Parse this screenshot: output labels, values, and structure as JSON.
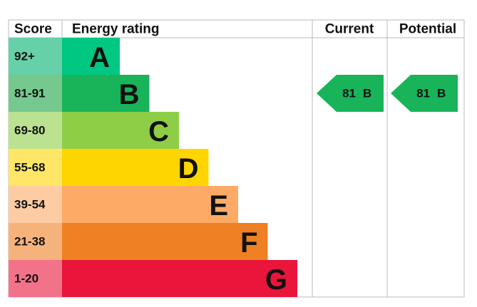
{
  "header": {
    "score": "Score",
    "energy_rating": "Energy rating",
    "current": "Current",
    "potential": "Potential"
  },
  "bands": [
    {
      "score": "92+",
      "letter": "A",
      "color": "#00c781",
      "score_color": "#66d1a8"
    },
    {
      "score": "81-91",
      "letter": "B",
      "color": "#19b459",
      "score_color": "#75c98f"
    },
    {
      "score": "69-80",
      "letter": "C",
      "color": "#8dce46",
      "score_color": "#bbe291"
    },
    {
      "score": "55-68",
      "letter": "D",
      "color": "#ffd500",
      "score_color": "#ffe666"
    },
    {
      "score": "39-54",
      "letter": "E",
      "color": "#fcaa65",
      "score_color": "#fdcca3"
    },
    {
      "score": "21-38",
      "letter": "F",
      "color": "#ef8023",
      "score_color": "#f5b37b"
    },
    {
      "score": "1-20",
      "letter": "G",
      "color": "#e9153b",
      "score_color": "#f27389"
    }
  ],
  "current": {
    "value": 81,
    "letter": "B"
  },
  "potential": {
    "value": 81,
    "letter": "B"
  }
}
